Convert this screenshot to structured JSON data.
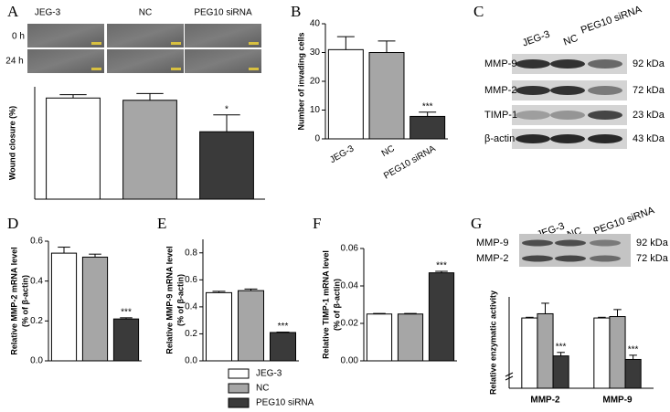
{
  "wound_assay": {
    "rows": [
      "0 h",
      "24 h"
    ]
  },
  "western_blot": {
    "panel": "C",
    "columns": [
      "JEG-3",
      "NC",
      "PEG10 siRNA"
    ],
    "bands": [
      {
        "protein": "MMP-9",
        "size": "92 kDa"
      },
      {
        "protein": "MMP-2",
        "size": "72 kDa"
      },
      {
        "protein": "TIMP-1",
        "size": "23 kDa"
      },
      {
        "protein": "β-actin",
        "size": "43 kDa"
      }
    ]
  },
  "zymography": {
    "columns": [
      "JEG-3",
      "NC",
      "PEG10 siRNA"
    ],
    "bands": [
      {
        "protein": "MMP-9",
        "size": "92 kDa"
      },
      {
        "protein": "MMP-2",
        "size": "72 kDa"
      }
    ]
  },
  "legend": [
    {
      "name": "JEG-3",
      "color": "#ffffff"
    },
    {
      "name": "NC",
      "color": "#a6a6a6"
    },
    {
      "name": "PEG10 siRNA",
      "color": "#3a3a3a"
    }
  ],
  "chart_data": [
    {
      "type": "bar",
      "panel": "A",
      "categories": [
        "JEG-3",
        "NC",
        "PEG10 siRNA"
      ],
      "values": [
        45,
        44,
        30
      ],
      "errors": [
        1.5,
        3,
        7.5
      ],
      "colors": [
        "#ffffff",
        "#a6a6a6",
        "#3a3a3a"
      ],
      "significance": [
        null,
        null,
        "*"
      ],
      "ylabel": "Wound closure (%)",
      "ylim": [
        0,
        50
      ]
    },
    {
      "type": "bar",
      "panel": "B",
      "categories": [
        "JEG-3",
        "NC",
        "PEG10 siRNA"
      ],
      "values": [
        31,
        30,
        7.8
      ],
      "errors": [
        4.5,
        4,
        1.5
      ],
      "colors": [
        "#ffffff",
        "#a6a6a6",
        "#3a3a3a"
      ],
      "significance": [
        null,
        null,
        "***"
      ],
      "ylabel": "Number of invading cells",
      "ylim": [
        0,
        40
      ],
      "yticks": [
        0,
        10,
        20,
        30,
        40
      ]
    },
    {
      "type": "bar",
      "panel": "D",
      "values": [
        0.54,
        0.52,
        0.21
      ],
      "errors": [
        0.03,
        0.015,
        0.006
      ],
      "colors": [
        "#ffffff",
        "#a6a6a6",
        "#3a3a3a"
      ],
      "significance": [
        null,
        null,
        "***"
      ],
      "ylabel": [
        "Relative MMP-2 mRNA level",
        "(% of β-actin)"
      ],
      "ylim": [
        0,
        0.6
      ],
      "yticks": [
        {
          "value": 0,
          "label": "0.0"
        },
        0.2,
        0.4,
        0.6
      ]
    },
    {
      "type": "bar",
      "panel": "E",
      "values": [
        0.505,
        0.52,
        0.21
      ],
      "errors": [
        0.01,
        0.012,
        0.003
      ],
      "colors": [
        "#ffffff",
        "#a6a6a6",
        "#3a3a3a"
      ],
      "significance": [
        null,
        null,
        "***"
      ],
      "ylabel": [
        "Relative MMP-9 mRNA level",
        "(% of β-actin)"
      ],
      "ylim": [
        0,
        0.9
      ],
      "yticks": [
        {
          "value": 0,
          "label": "0.0"
        },
        0.2,
        0.4,
        0.6,
        0.8
      ]
    },
    {
      "type": "bar",
      "panel": "F",
      "values": [
        0.025,
        0.025,
        0.047
      ],
      "errors": [
        0.0003,
        0.0003,
        0.0008
      ],
      "colors": [
        "#ffffff",
        "#a6a6a6",
        "#3a3a3a"
      ],
      "significance": [
        null,
        null,
        "***"
      ],
      "ylabel": [
        "Relative TIMP-1 mRNA level",
        "(% of β-actin)"
      ],
      "ylim": [
        0,
        0.06
      ],
      "yticks": [
        {
          "value": 0,
          "label": "0.00"
        },
        0.02,
        0.04,
        0.06
      ]
    },
    {
      "type": "bar",
      "panel": "G",
      "categories": [
        "MMP-2",
        "MMP-9"
      ],
      "ylabel": "Relative enzymatic activity",
      "ylim": [
        0,
        1.3
      ],
      "series": [
        {
          "name": "JEG-3",
          "color": "#ffffff",
          "values": [
            1,
            1
          ],
          "errors": [
            0.01,
            0.01
          ]
        },
        {
          "name": "NC",
          "color": "#a6a6a6",
          "values": [
            1.06,
            1.02
          ],
          "errors": [
            0.15,
            0.1
          ]
        },
        {
          "name": "PEG10 siRNA",
          "color": "#3a3a3a",
          "values": [
            0.46,
            0.41
          ],
          "errors": [
            0.05,
            0.06
          ],
          "significance": [
            "***",
            "***"
          ]
        }
      ]
    }
  ]
}
